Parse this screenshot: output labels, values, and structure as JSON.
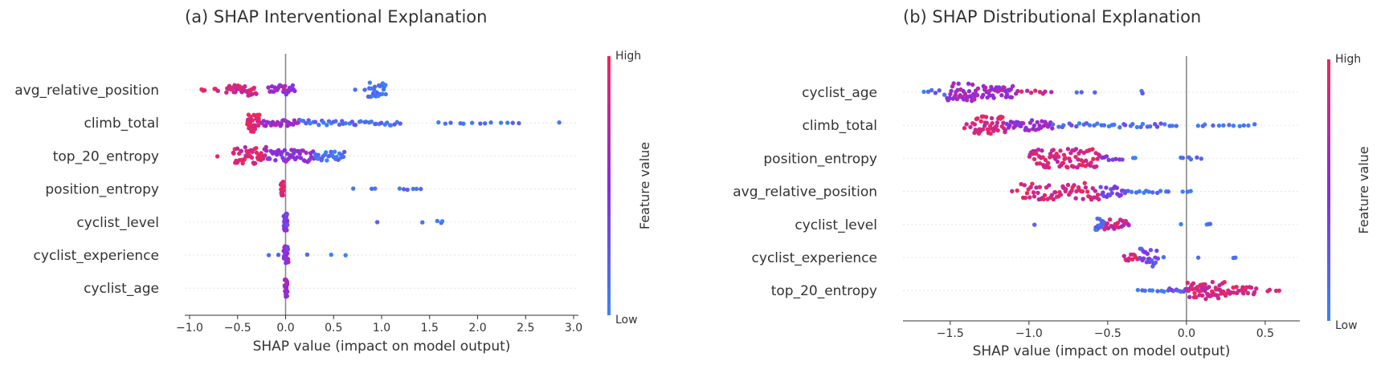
{
  "colors": {
    "low": "#3b82f6",
    "mid": "#8a2be2",
    "high": "#f0265a",
    "zero_line": "#888888",
    "grid": "#e3e3e3"
  },
  "chart_data": [
    {
      "type": "scatter",
      "subtype": "shap-beeswarm",
      "title": "(a) SHAP Interventional Explanation",
      "xlabel": "SHAP value (impact on model output)",
      "xlim": [
        -1.05,
        3.05
      ],
      "xticks": [
        -1.0,
        -0.5,
        0.0,
        0.5,
        1.0,
        1.5,
        2.0,
        2.5,
        3.0
      ],
      "xtick_labels": [
        "−1.0",
        "−0.5",
        "0.0",
        "0.5",
        "1.0",
        "1.5",
        "2.0",
        "2.5",
        "3.0"
      ],
      "colorbar": {
        "label": "Feature value",
        "high": "High",
        "low": "Low"
      },
      "features": [
        {
          "name": "avg_relative_position",
          "clusters": [
            {
              "lo": -0.88,
              "hi": -0.84,
              "n": 4,
              "v": 0.95,
              "w": 0.1
            },
            {
              "lo": -0.75,
              "hi": -0.7,
              "n": 3,
              "v": 0.9,
              "w": 0.15
            },
            {
              "lo": -0.62,
              "hi": -0.3,
              "n": 34,
              "v": 0.85,
              "w": 0.55
            },
            {
              "lo": -0.18,
              "hi": 0.1,
              "n": 26,
              "v": 0.55,
              "w": 0.45
            },
            {
              "lo": 0.72,
              "hi": 0.73,
              "n": 1,
              "v": 0.1,
              "w": 0.05
            },
            {
              "lo": 0.82,
              "hi": 0.83,
              "n": 1,
              "v": 0.1,
              "w": 0.05
            },
            {
              "lo": 0.86,
              "hi": 1.05,
              "n": 24,
              "v": 0.05,
              "w": 0.75
            }
          ]
        },
        {
          "name": "climb_total",
          "clusters": [
            {
              "lo": -0.4,
              "hi": -0.27,
              "n": 40,
              "v": 0.95,
              "w": 0.85
            },
            {
              "lo": -0.25,
              "hi": 0.15,
              "n": 30,
              "v": 0.6,
              "w": 0.3
            },
            {
              "lo": 0.15,
              "hi": 1.2,
              "n": 40,
              "v": 0.1,
              "w": 0.25
            },
            {
              "lo": 1.55,
              "hi": 2.5,
              "n": 13,
              "v": 0.05,
              "w": 0.08
            },
            {
              "lo": 2.84,
              "hi": 2.86,
              "n": 1,
              "v": 0.0,
              "w": 0.05
            }
          ]
        },
        {
          "name": "top_20_entropy",
          "clusters": [
            {
              "lo": -0.72,
              "hi": -0.7,
              "n": 1,
              "v": 0.95,
              "w": 0.05
            },
            {
              "lo": -0.55,
              "hi": -0.2,
              "n": 45,
              "v": 0.9,
              "w": 0.85
            },
            {
              "lo": -0.2,
              "hi": 0.3,
              "n": 45,
              "v": 0.5,
              "w": 0.6
            },
            {
              "lo": 0.3,
              "hi": 0.62,
              "n": 25,
              "v": 0.1,
              "w": 0.45
            }
          ]
        },
        {
          "name": "position_entropy",
          "clusters": [
            {
              "lo": -0.05,
              "hi": -0.02,
              "n": 22,
              "v": 0.9,
              "w": 0.7
            },
            {
              "lo": 0.7,
              "hi": 0.71,
              "n": 1,
              "v": 0.05,
              "w": 0.05
            },
            {
              "lo": 0.87,
              "hi": 0.95,
              "n": 2,
              "v": 0.05,
              "w": 0.05
            },
            {
              "lo": 1.18,
              "hi": 1.42,
              "n": 6,
              "v": 0.05,
              "w": 0.08
            }
          ]
        },
        {
          "name": "cyclist_level",
          "clusters": [
            {
              "lo": -0.02,
              "hi": 0.02,
              "n": 24,
              "v": 0.45,
              "w": 0.85
            },
            {
              "lo": 0.95,
              "hi": 0.96,
              "n": 1,
              "v": 0.05,
              "w": 0.05
            },
            {
              "lo": 1.42,
              "hi": 1.43,
              "n": 1,
              "v": 0.05,
              "w": 0.05
            },
            {
              "lo": 1.58,
              "hi": 1.65,
              "n": 3,
              "v": 0.05,
              "w": 0.2
            }
          ]
        },
        {
          "name": "cyclist_experience",
          "clusters": [
            {
              "lo": -0.18,
              "hi": -0.17,
              "n": 1,
              "v": 0.05,
              "w": 0.05
            },
            {
              "lo": -0.08,
              "hi": -0.07,
              "n": 1,
              "v": 0.05,
              "w": 0.05
            },
            {
              "lo": -0.02,
              "hi": 0.03,
              "n": 24,
              "v": 0.5,
              "w": 0.85
            },
            {
              "lo": 0.22,
              "hi": 0.23,
              "n": 1,
              "v": 0.05,
              "w": 0.05
            },
            {
              "lo": 0.47,
              "hi": 0.48,
              "n": 1,
              "v": 0.05,
              "w": 0.05
            },
            {
              "lo": 0.62,
              "hi": 0.63,
              "n": 1,
              "v": 0.05,
              "w": 0.05
            }
          ]
        },
        {
          "name": "cyclist_age",
          "clusters": [
            {
              "lo": -0.01,
              "hi": 0.02,
              "n": 24,
              "v": 0.6,
              "w": 0.85
            }
          ]
        }
      ]
    },
    {
      "type": "scatter",
      "subtype": "shap-beeswarm",
      "title": "(b) SHAP Distributional Explanation",
      "xlabel": "SHAP value (impact on model output)",
      "xlim": [
        -1.8,
        0.72
      ],
      "xticks": [
        -1.5,
        -1.0,
        -0.5,
        0.0,
        0.5
      ],
      "xtick_labels": [
        "−1.5",
        "−1.0",
        "−0.5",
        "0.0",
        "0.5"
      ],
      "colorbar": {
        "label": "Feature value",
        "high": "High",
        "low": "Low"
      },
      "features": [
        {
          "name": "cyclist_age",
          "clusters": [
            {
              "lo": -1.68,
              "hi": -1.52,
              "n": 6,
              "v": 0.15,
              "w": 0.25
            },
            {
              "lo": -1.52,
              "hi": -1.32,
              "n": 40,
              "v": 0.6,
              "w": 0.85
            },
            {
              "lo": -1.3,
              "hi": -1.1,
              "n": 35,
              "v": 0.6,
              "w": 0.6
            },
            {
              "lo": -1.1,
              "hi": -0.85,
              "n": 10,
              "v": 0.8,
              "w": 0.15
            },
            {
              "lo": -0.75,
              "hi": -0.55,
              "n": 3,
              "v": 0.1,
              "w": 0.05
            },
            {
              "lo": -0.29,
              "hi": -0.27,
              "n": 2,
              "v": 0.1,
              "w": 0.15
            }
          ]
        },
        {
          "name": "climb_total",
          "clusters": [
            {
              "lo": -1.42,
              "hi": -1.35,
              "n": 4,
              "v": 0.95,
              "w": 0.3
            },
            {
              "lo": -1.35,
              "hi": -1.15,
              "n": 40,
              "v": 0.9,
              "w": 0.85
            },
            {
              "lo": -1.15,
              "hi": -0.85,
              "n": 35,
              "v": 0.55,
              "w": 0.5
            },
            {
              "lo": -0.85,
              "hi": -0.05,
              "n": 35,
              "v": 0.15,
              "w": 0.2
            },
            {
              "lo": 0.05,
              "hi": 0.45,
              "n": 12,
              "v": 0.05,
              "w": 0.1
            }
          ]
        },
        {
          "name": "position_entropy",
          "clusters": [
            {
              "lo": -1.0,
              "hi": -0.55,
              "n": 80,
              "v": 0.85,
              "w": 0.9
            },
            {
              "lo": -0.55,
              "hi": -0.4,
              "n": 8,
              "v": 0.5,
              "w": 0.2
            },
            {
              "lo": -0.35,
              "hi": -0.32,
              "n": 2,
              "v": 0.05,
              "w": 0.05
            },
            {
              "lo": -0.05,
              "hi": 0.1,
              "n": 6,
              "v": 0.1,
              "w": 0.1
            }
          ]
        },
        {
          "name": "avg_relative_position",
          "clusters": [
            {
              "lo": -1.12,
              "hi": -1.05,
              "n": 2,
              "v": 0.95,
              "w": 0.1
            },
            {
              "lo": -1.05,
              "hi": -0.55,
              "n": 60,
              "v": 0.85,
              "w": 0.8
            },
            {
              "lo": -0.55,
              "hi": -0.38,
              "n": 20,
              "v": 0.4,
              "w": 0.55
            },
            {
              "lo": -0.38,
              "hi": -0.1,
              "n": 12,
              "v": 0.1,
              "w": 0.15
            },
            {
              "lo": -0.05,
              "hi": 0.05,
              "n": 3,
              "v": 0.1,
              "w": 0.05
            }
          ]
        },
        {
          "name": "cyclist_level",
          "clusters": [
            {
              "lo": -0.97,
              "hi": -0.96,
              "n": 1,
              "v": 0.05,
              "w": 0.05
            },
            {
              "lo": -0.58,
              "hi": -0.52,
              "n": 14,
              "v": 0.1,
              "w": 0.7
            },
            {
              "lo": -0.52,
              "hi": -0.36,
              "n": 22,
              "v": 0.8,
              "w": 0.5
            },
            {
              "lo": -0.04,
              "hi": -0.03,
              "n": 1,
              "v": 0.1,
              "w": 0.05
            },
            {
              "lo": 0.12,
              "hi": 0.16,
              "n": 3,
              "v": 0.05,
              "w": 0.05
            }
          ]
        },
        {
          "name": "cyclist_experience",
          "clusters": [
            {
              "lo": -0.4,
              "hi": -0.3,
              "n": 12,
              "v": 0.85,
              "w": 0.3
            },
            {
              "lo": -0.3,
              "hi": -0.18,
              "n": 22,
              "v": 0.3,
              "w": 0.85
            },
            {
              "lo": -0.15,
              "hi": -0.14,
              "n": 1,
              "v": 0.05,
              "w": 0.05
            },
            {
              "lo": 0.07,
              "hi": 0.08,
              "n": 1,
              "v": 0.05,
              "w": 0.05
            },
            {
              "lo": 0.29,
              "hi": 0.32,
              "n": 2,
              "v": 0.05,
              "w": 0.05
            }
          ]
        },
        {
          "name": "top_20_entropy",
          "clusters": [
            {
              "lo": -0.32,
              "hi": -0.12,
              "n": 8,
              "v": 0.05,
              "w": 0.1
            },
            {
              "lo": -0.12,
              "hi": 0.0,
              "n": 10,
              "v": 0.3,
              "w": 0.2
            },
            {
              "lo": 0.0,
              "hi": 0.25,
              "n": 55,
              "v": 0.85,
              "w": 0.85
            },
            {
              "lo": 0.25,
              "hi": 0.45,
              "n": 20,
              "v": 0.9,
              "w": 0.35
            },
            {
              "lo": 0.5,
              "hi": 0.6,
              "n": 4,
              "v": 0.95,
              "w": 0.1
            }
          ]
        }
      ]
    }
  ]
}
